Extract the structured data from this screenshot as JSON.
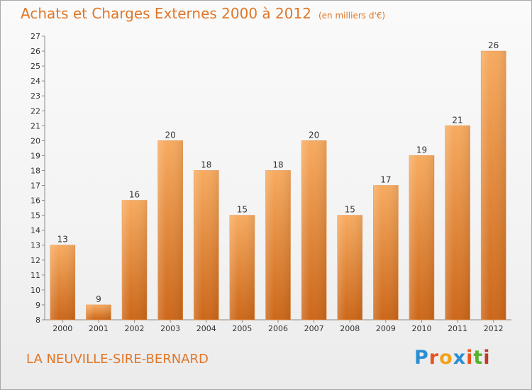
{
  "header": {
    "title": "Achats et Charges Externes 2000 à 2012",
    "unit": "(en milliers d'€)"
  },
  "footer": {
    "location": "LA NEUVILLE-SIRE-BERNARD",
    "logo_text": "Proxiti"
  },
  "colors": {
    "accent": "#e07628",
    "bar_light": "#f5a55a",
    "bar_dark": "#cf6a1a"
  },
  "chart_data": {
    "type": "bar",
    "title": "Achats et Charges Externes 2000 à 2012",
    "subtitle": "(en milliers d'€)",
    "xlabel": "",
    "ylabel": "",
    "categories": [
      "2000",
      "2001",
      "2002",
      "2003",
      "2004",
      "2005",
      "2006",
      "2007",
      "2008",
      "2009",
      "2010",
      "2011",
      "2012"
    ],
    "values": [
      13,
      9,
      16,
      20,
      18,
      15,
      18,
      20,
      15,
      17,
      19,
      21,
      26
    ],
    "ylim": [
      8,
      27
    ],
    "yticks": [
      8,
      9,
      10,
      11,
      12,
      13,
      14,
      15,
      16,
      17,
      18,
      19,
      20,
      21,
      22,
      23,
      24,
      25,
      26,
      27
    ],
    "grid": false,
    "legend": "none"
  }
}
